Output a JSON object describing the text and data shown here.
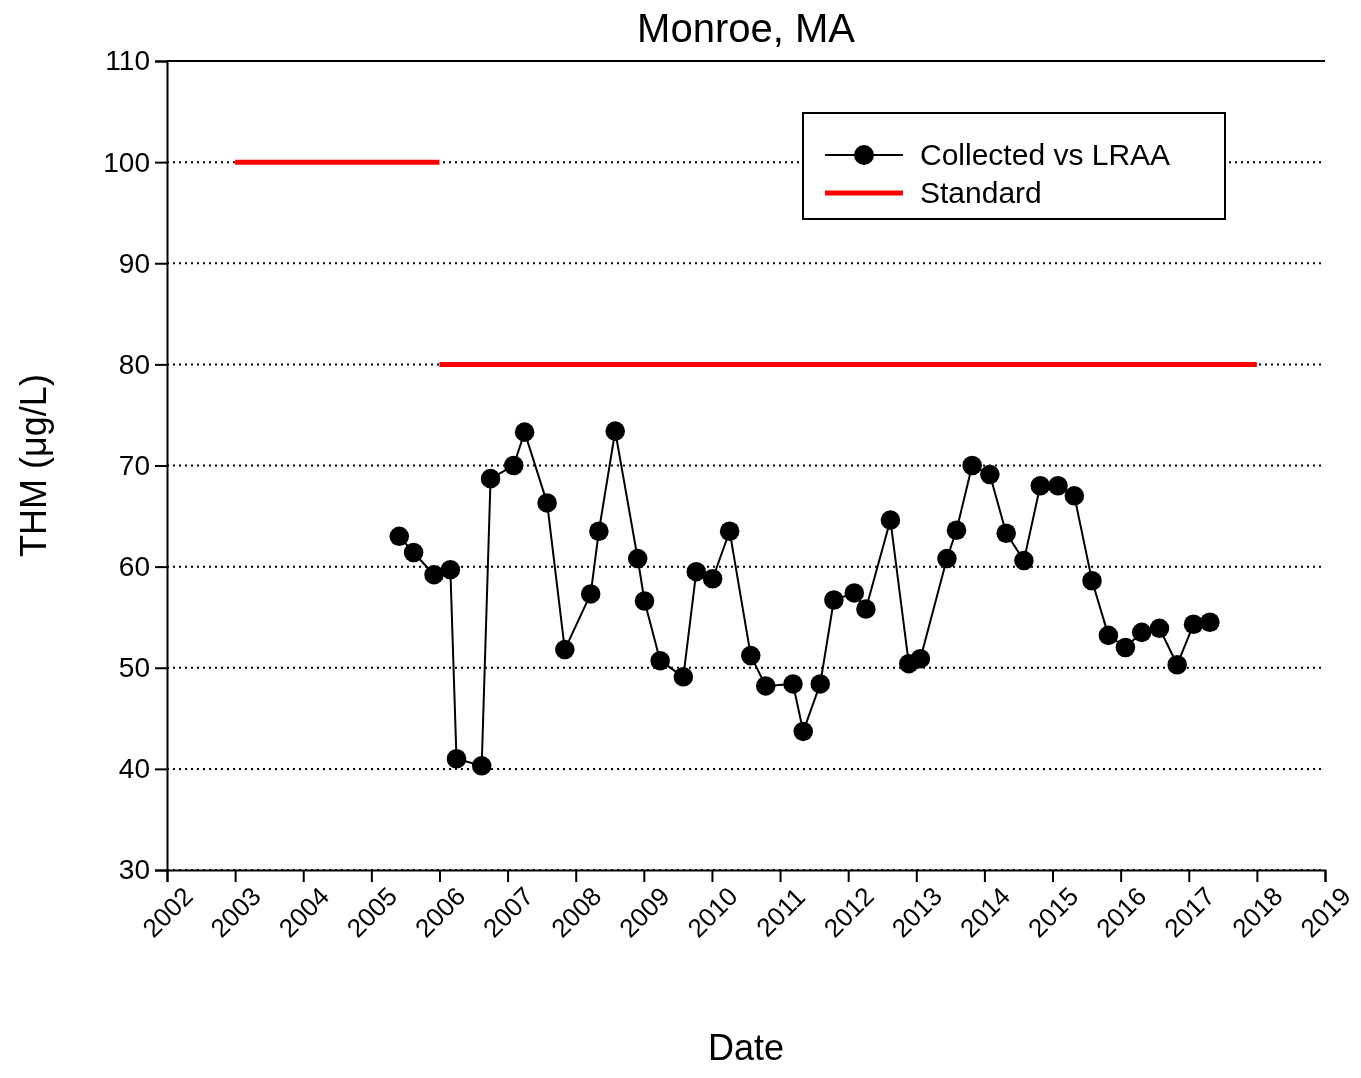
{
  "chart_data": {
    "type": "line",
    "title": "Monroe, MA",
    "xlabel": "Date",
    "ylabel": "THM (μg/L)",
    "xlim": [
      2002,
      2019
    ],
    "xticks": [
      2002,
      2003,
      2004,
      2005,
      2006,
      2007,
      2008,
      2009,
      2010,
      2011,
      2012,
      2013,
      2014,
      2015,
      2016,
      2017,
      2018,
      2019
    ],
    "ylim": [
      30,
      110
    ],
    "yticks": [
      30,
      40,
      50,
      60,
      70,
      80,
      90,
      100,
      110
    ],
    "grid": "y",
    "legend": "top right",
    "series": [
      {
        "name": "Collected vs LRAA",
        "color": "#000000",
        "marker": "circle",
        "x": [
          2005.41,
          2005.62,
          2005.92,
          2006.16,
          2006.25,
          2006.62,
          2006.75,
          2007.09,
          2007.25,
          2007.58,
          2007.84,
          2008.22,
          2008.34,
          2008.58,
          2008.91,
          2009.01,
          2009.24,
          2009.58,
          2009.77,
          2010.01,
          2010.26,
          2010.57,
          2010.79,
          2011.19,
          2011.34,
          2011.59,
          2011.79,
          2012.09,
          2012.26,
          2012.62,
          2012.89,
          2013.06,
          2013.45,
          2013.59,
          2013.82,
          2014.08,
          2014.32,
          2014.58,
          2014.82,
          2015.08,
          2015.32,
          2015.58,
          2015.82,
          2016.07,
          2016.31,
          2016.57,
          2016.83,
          2017.07,
          2017.31
        ],
        "values": [
          63.0,
          61.4,
          59.2,
          59.7,
          41.0,
          40.3,
          68.7,
          70.0,
          73.3,
          66.3,
          51.8,
          57.3,
          63.5,
          73.4,
          60.8,
          56.6,
          50.7,
          49.1,
          59.5,
          58.8,
          63.5,
          51.2,
          48.2,
          48.4,
          43.7,
          48.4,
          56.7,
          57.4,
          55.8,
          64.6,
          50.4,
          50.9,
          60.8,
          63.6,
          70.0,
          69.1,
          63.3,
          60.6,
          68.0,
          68.0,
          67.0,
          58.6,
          53.2,
          52.0,
          53.5,
          53.9,
          50.3,
          54.3,
          54.5
        ]
      },
      {
        "name": "Standard",
        "color": "#ff0000",
        "marker": "none",
        "x": [
          2006,
          2018
        ],
        "values": [
          80,
          80
        ]
      },
      {
        "color": "#ff0000",
        "marker": "none",
        "x": [
          2003,
          2006
        ],
        "values": [
          100,
          100
        ]
      }
    ]
  }
}
